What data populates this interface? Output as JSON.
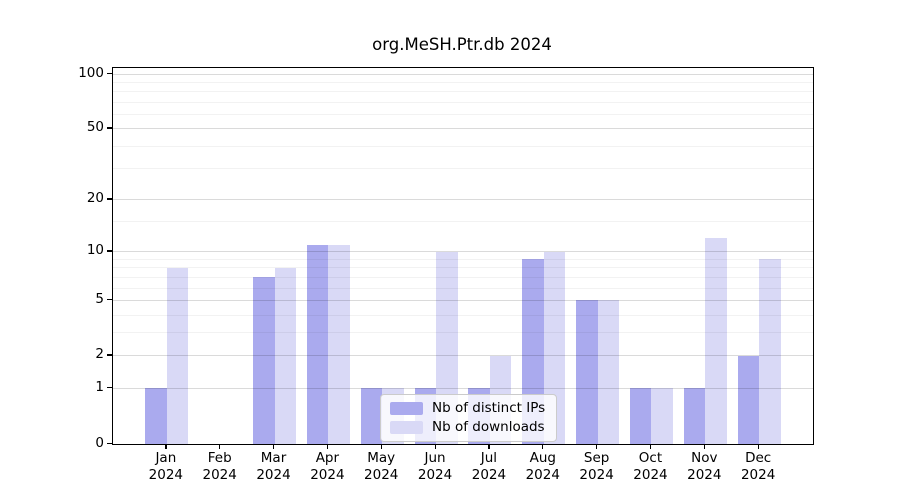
{
  "title": "org.MeSH.Ptr.db 2024",
  "chart_data": {
    "type": "bar",
    "title": "org.MeSH.Ptr.db 2024",
    "categories": [
      {
        "month": "Jan",
        "year": "2024"
      },
      {
        "month": "Feb",
        "year": "2024"
      },
      {
        "month": "Mar",
        "year": "2024"
      },
      {
        "month": "Apr",
        "year": "2024"
      },
      {
        "month": "May",
        "year": "2024"
      },
      {
        "month": "Jun",
        "year": "2024"
      },
      {
        "month": "Jul",
        "year": "2024"
      },
      {
        "month": "Aug",
        "year": "2024"
      },
      {
        "month": "Sep",
        "year": "2024"
      },
      {
        "month": "Oct",
        "year": "2024"
      },
      {
        "month": "Nov",
        "year": "2024"
      },
      {
        "month": "Dec",
        "year": "2024"
      }
    ],
    "series": [
      {
        "name": "Nb of distinct IPs",
        "color": "#aaaaee",
        "values": [
          1,
          0,
          7,
          11,
          1,
          1,
          1,
          9,
          5,
          1,
          1,
          2
        ]
      },
      {
        "name": "Nb of downloads",
        "color": "#d9d9f6",
        "values": [
          8,
          0,
          8,
          11,
          1,
          10,
          2,
          10,
          5,
          1,
          12,
          9
        ]
      }
    ],
    "yscale": "log1p",
    "ylim": [
      0,
      108
    ],
    "yticks": [
      0,
      1,
      2,
      5,
      10,
      20,
      50,
      100
    ],
    "yticks_minor": [
      3,
      4,
      6,
      7,
      8,
      9,
      15,
      30,
      40,
      60,
      70,
      80,
      90
    ],
    "xlabel": "",
    "ylabel": "",
    "grid": true,
    "legend_position": "lower-center-inside"
  },
  "colors": {
    "background": "#ffffff",
    "axis": "#000000",
    "grid_major": "#dadada",
    "grid_minor": "#f2f2f2",
    "legend_border": "#cbcbcb"
  }
}
